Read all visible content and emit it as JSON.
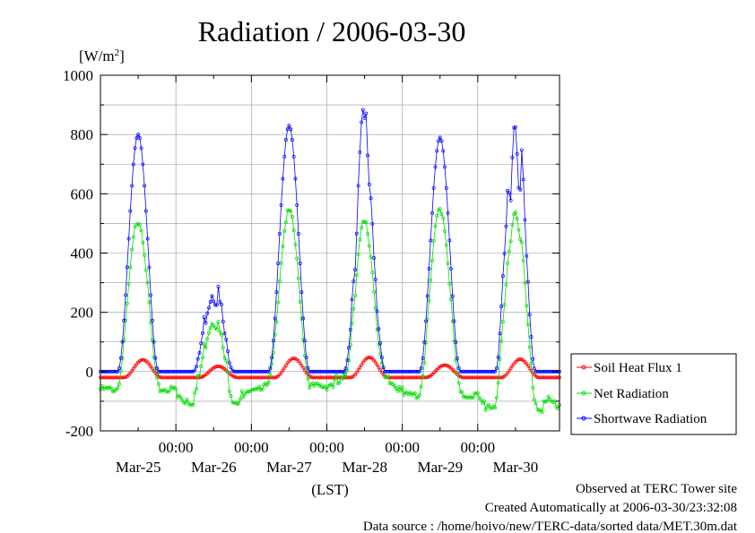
{
  "chart_data": {
    "type": "line",
    "title": "Radiation / 2006-03-30",
    "ylabel_unit": "[W/m",
    "ylabel_sup": "2",
    "ylabel_close": "]",
    "xlabel": "(LST)",
    "ylim": [
      -200,
      1000
    ],
    "yticks": [
      -200,
      0,
      200,
      400,
      600,
      800,
      1000
    ],
    "xlim_hours": [
      0,
      146
    ],
    "xticks": [
      {
        "hour": 24,
        "time": "00:00",
        "date": "Mar-25"
      },
      {
        "hour": 48,
        "time": "00:00",
        "date": "Mar-26"
      },
      {
        "hour": 72,
        "time": "00:00",
        "date": "Mar-27"
      },
      {
        "hour": 96,
        "time": "00:00",
        "date": "Mar-28"
      },
      {
        "hour": 120,
        "time": "00:00",
        "date": "Mar-29"
      }
    ],
    "extra_date_label": {
      "hour": 144,
      "date": "Mar-30"
    },
    "minor_x_hours": [
      12,
      36,
      60,
      84,
      108,
      132
    ],
    "grid": true,
    "legend_position": "right",
    "series": [
      {
        "name": "Soil Heat Flux 1",
        "color": "#ff0000",
        "marker": "circle"
      },
      {
        "name": "Net Radiation",
        "color": "#00dd00",
        "marker": "circle"
      },
      {
        "name": "Shortwave Radiation",
        "color": "#0000ff",
        "marker": "circle"
      }
    ],
    "days": [
      {
        "center_hour": 12,
        "sw_peak": 800,
        "net_peak": 510,
        "soil_peak": 40,
        "net_night": -60,
        "noisy": false
      },
      {
        "center_hour": 36,
        "sw_peak": 290,
        "net_peak": 180,
        "soil_peak": 18,
        "net_night": -90,
        "noisy": true
      },
      {
        "center_hour": 60,
        "sw_peak": 830,
        "net_peak": 540,
        "soil_peak": 45,
        "net_night": -50,
        "noisy": false
      },
      {
        "center_hour": 84,
        "sw_peak": 770,
        "net_peak": 490,
        "soil_peak": 48,
        "net_night": -40,
        "noisy": true
      },
      {
        "center_hour": 108,
        "sw_peak": 790,
        "net_peak": 550,
        "soil_peak": 22,
        "net_night": -80,
        "noisy": false
      },
      {
        "center_hour": 132,
        "sw_peak": 840,
        "net_peak": 540,
        "soil_peak": 42,
        "net_night": -110,
        "noisy": true
      }
    ]
  },
  "footer": {
    "observed": "Observed at TERC Tower site",
    "created": "Created Automatically at 2006-03-30/23:32:08",
    "source": "Data source : /home/hoivo/new/TERC-data/sorted data/MET.30m.dat"
  }
}
